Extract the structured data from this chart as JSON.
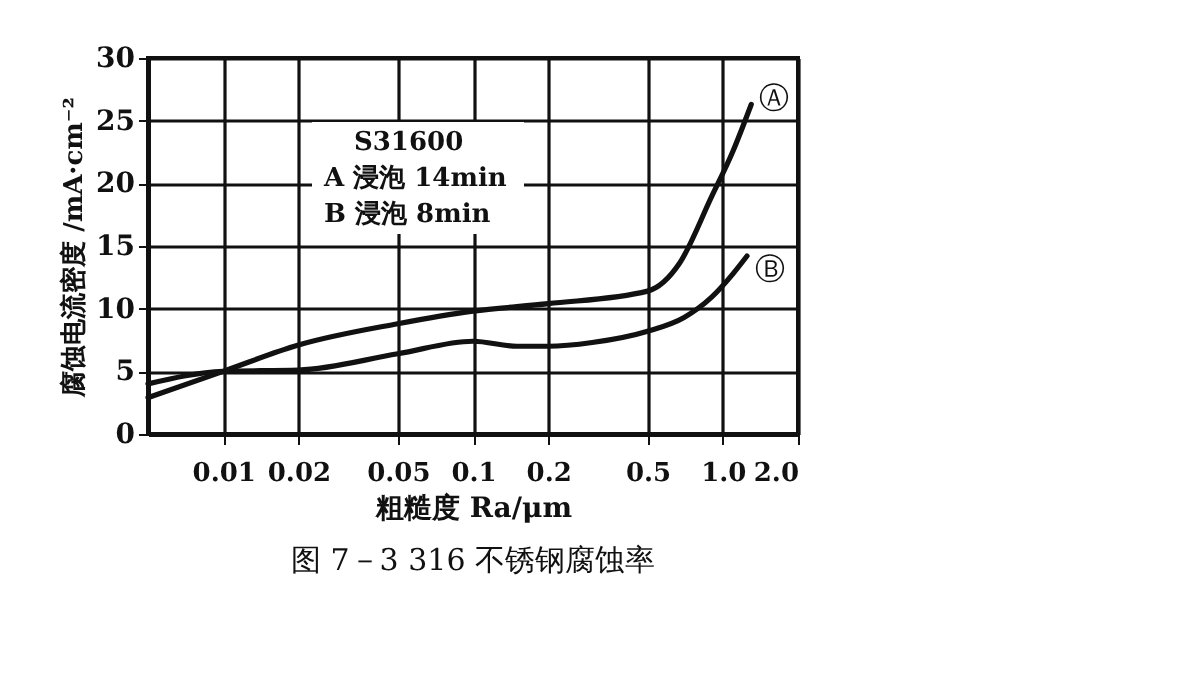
{
  "chart_data": {
    "type": "line",
    "title": "图 7－3   316 不锈钢腐蚀率",
    "xlabel": "粗糙度 Ra/μm",
    "ylabel": "腐蚀电流密度 /mA·cm⁻²",
    "annotations": [
      "S31600",
      "A 浸泡 14min",
      "B 浸泡 8min"
    ],
    "log": "x",
    "grid": true,
    "legend": false,
    "line_style": "solid",
    "xlim": [
      0.005,
      2
    ],
    "xticks": [
      0.01,
      0.02,
      0.05,
      0.1,
      0.2,
      0.5,
      {
        "value": 1,
        "label": "1.0"
      },
      {
        "value": 2,
        "label": "2.0"
      }
    ],
    "ylim": [
      0,
      30
    ],
    "yticks": [
      0,
      5,
      10,
      15,
      20,
      25,
      30
    ],
    "series": [
      {
        "name": "Ⓐ",
        "color": "#111111",
        "x": [
          0.005,
          0.01,
          0.02,
          0.05,
          0.1,
          0.2,
          0.5,
          0.67,
          0.9,
          1.1,
          1.3
        ],
        "values": [
          2.9,
          5.0,
          7.1,
          8.8,
          9.8,
          10.4,
          11.4,
          13.6,
          18.9,
          22.6,
          26.3
        ]
      },
      {
        "name": "Ⓑ",
        "color": "#111111",
        "x": [
          0.005,
          0.01,
          0.02,
          0.05,
          0.1,
          0.15,
          0.2,
          0.3,
          0.5,
          0.7,
          0.9,
          1.1,
          1.25
        ],
        "values": [
          4.0,
          5.0,
          5.1,
          6.4,
          7.4,
          7.0,
          7.0,
          7.3,
          8.2,
          9.3,
          10.9,
          12.8,
          14.2
        ]
      }
    ]
  }
}
